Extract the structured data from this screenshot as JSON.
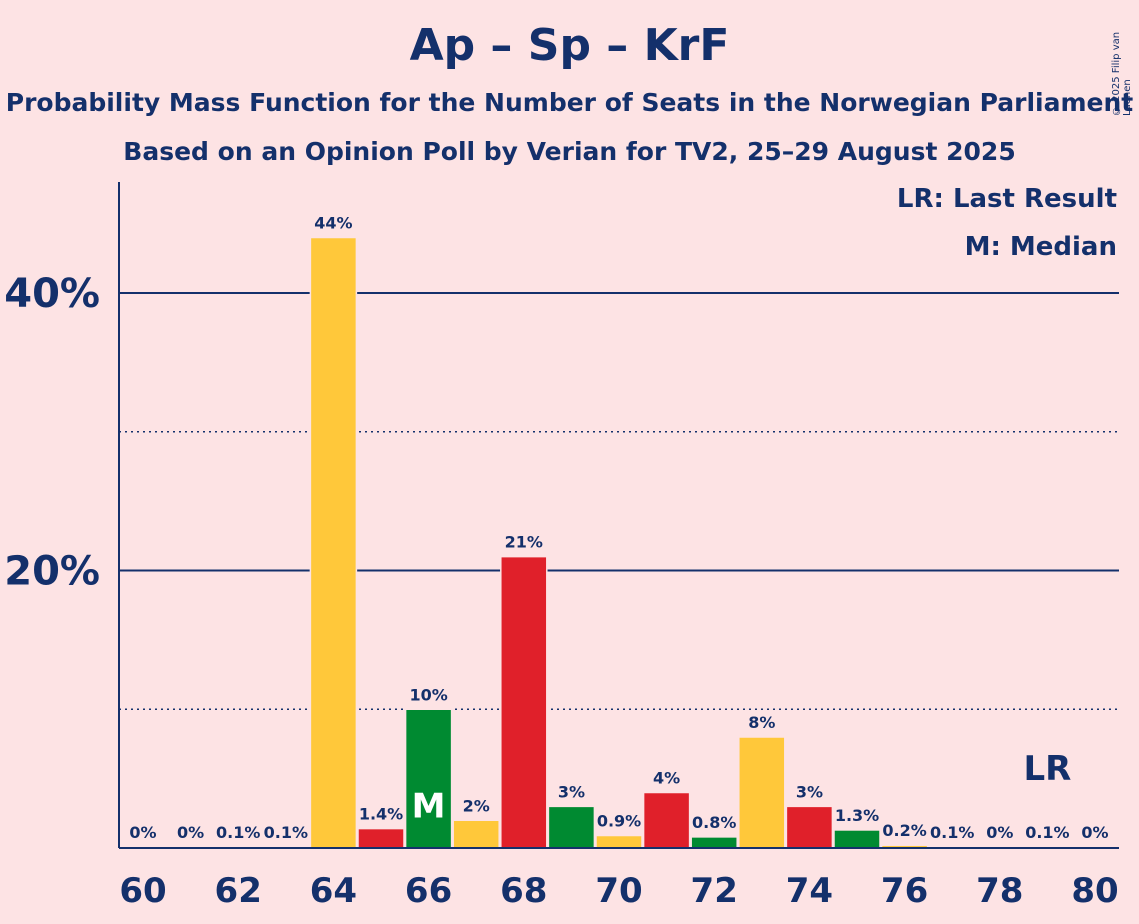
{
  "title": "Ap – Sp – KrF",
  "subtitle1": "Probability Mass Function for the Number of Seats in the Norwegian Parliament",
  "subtitle2": "Based on an Opinion Poll by Verian for TV2, 25–29 August 2025",
  "legend": {
    "lr": "LR: Last Result",
    "m": "M: Median"
  },
  "copyright": "© 2025 Filip van Laenen",
  "colors": {
    "background": "#fde3e4",
    "text": "#14306b",
    "green": "#008a31",
    "yellow": "#ffc83a",
    "red": "#e0202a"
  },
  "chart_data": {
    "type": "bar",
    "x": [
      60,
      61,
      62,
      63,
      64,
      65,
      66,
      67,
      68,
      69,
      70,
      71,
      72,
      73,
      74,
      75,
      76,
      77,
      78,
      79,
      80
    ],
    "values": [
      0,
      0,
      0.1,
      0.1,
      44,
      1.4,
      10,
      2,
      21,
      3,
      0.9,
      4,
      0.8,
      8,
      3,
      1.3,
      0.2,
      0.1,
      0,
      0.1,
      0
    ],
    "labels": [
      "0%",
      "0%",
      "0.1%",
      "0.1%",
      "44%",
      "1.4%",
      "10%",
      "2%",
      "21%",
      "3%",
      "0.9%",
      "4%",
      "0.8%",
      "8%",
      "3%",
      "1.3%",
      "0.2%",
      "0.1%",
      "0%",
      "0.1%",
      "0%"
    ],
    "bar_colors": [
      "green",
      "yellow",
      "red",
      "green",
      "yellow",
      "red",
      "green",
      "yellow",
      "red",
      "green",
      "yellow",
      "red",
      "green",
      "yellow",
      "red",
      "green",
      "yellow",
      "red",
      "green",
      "yellow",
      "red"
    ],
    "xticks": [
      "60",
      "62",
      "64",
      "66",
      "68",
      "70",
      "72",
      "74",
      "76",
      "78",
      "80"
    ],
    "yticks": [
      "20%",
      "40%"
    ],
    "ylim": [
      0,
      48
    ],
    "gridlines_solid": [
      20,
      40
    ],
    "gridlines_dotted": [
      10,
      30
    ],
    "median_seat": 66,
    "median_label": "M",
    "last_result_seat": 79,
    "last_result_label": "LR"
  }
}
